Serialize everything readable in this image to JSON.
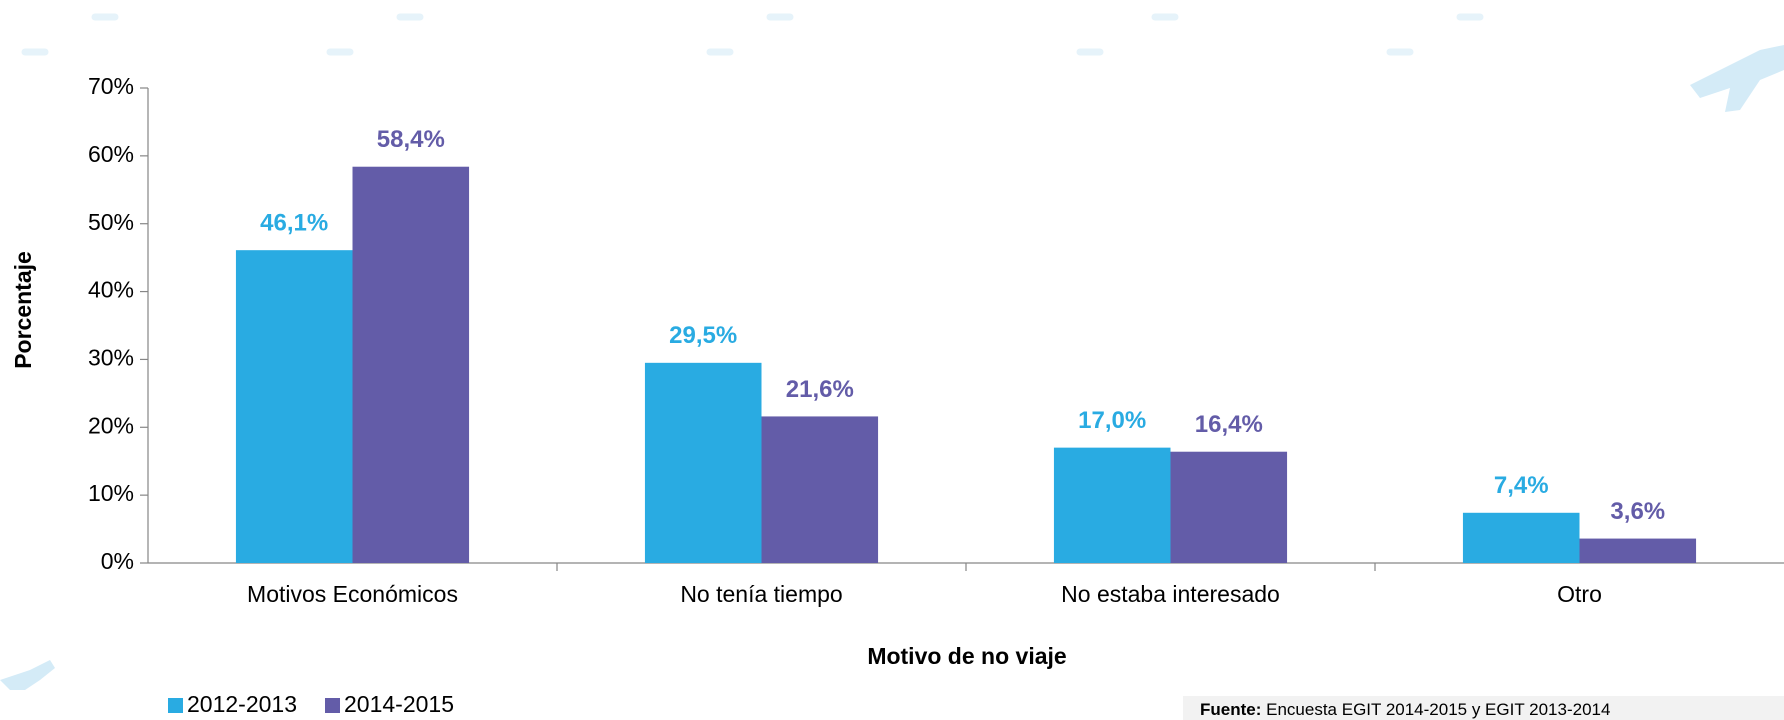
{
  "chart_data": {
    "type": "bar",
    "x_label": "Motivo de no viaje",
    "y_label": "Porcentaje",
    "categories": [
      "Motivos Económicos",
      "No tenía tiempo",
      "No estaba interesado",
      "Otro"
    ],
    "series": [
      {
        "name": "2012-2013",
        "color": "#29abe2",
        "values": [
          46.1,
          29.5,
          17.0,
          7.4
        ],
        "value_labels": [
          "46,1%",
          "29,5%",
          "17,0%",
          "7,4%"
        ]
      },
      {
        "name": "2014-2015",
        "color": "#635ca8",
        "values": [
          58.4,
          21.6,
          16.4,
          3.6
        ],
        "value_labels": [
          "58,4%",
          "21,6%",
          "16,4%",
          "3,6%"
        ]
      }
    ],
    "ylim": [
      0,
      70
    ],
    "yticks": [
      {
        "value": 0,
        "label": "0%"
      },
      {
        "value": 10,
        "label": "10%"
      },
      {
        "value": 20,
        "label": "20%"
      },
      {
        "value": 30,
        "label": "30%"
      },
      {
        "value": 40,
        "label": "40%"
      },
      {
        "value": 50,
        "label": "50%"
      },
      {
        "value": 60,
        "label": "60%"
      },
      {
        "value": 70,
        "label": "70%"
      }
    ],
    "grid": false,
    "legend": "bottom-left",
    "source": {
      "label": "Fuente:",
      "text": "Encuesta EGIT 2014-2015 y EGIT 2013-2014"
    }
  }
}
